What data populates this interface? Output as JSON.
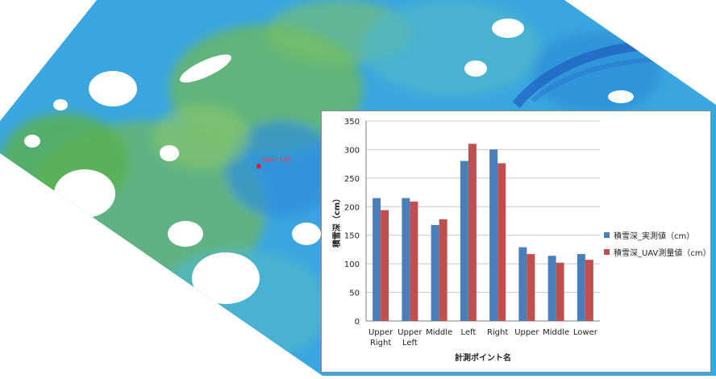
{
  "map": {
    "point_label": "Upper Left",
    "colors": {
      "blue": "#2f9fe6",
      "green": "#6fb85a",
      "teal": "#4fb8c9",
      "navy": "#1e4fb0",
      "snow": "#ffffff",
      "marker": "#d0263a"
    }
  },
  "chart_data": {
    "type": "bar",
    "categories": [
      "Upper Right",
      "Upper Left",
      "Middle",
      "Left",
      "Right",
      "Upper",
      "Middle",
      "Lower"
    ],
    "category_lines": [
      [
        "Upper",
        "Right"
      ],
      [
        "Upper",
        "Left"
      ],
      [
        "Middle"
      ],
      [
        "Left"
      ],
      [
        "Right"
      ],
      [
        "Upper"
      ],
      [
        "Middle"
      ],
      [
        "Lower"
      ]
    ],
    "series": [
      {
        "name": "積雪深_実測値（cm）",
        "color": "#4a7ebb",
        "values": [
          215,
          215,
          168,
          280,
          300,
          129,
          114,
          117
        ]
      },
      {
        "name": "積雪深_UAV測量値（cm）",
        "color": "#c0504d",
        "values": [
          194,
          209,
          178,
          310,
          276,
          117,
          102,
          107
        ]
      }
    ],
    "xlabel": "計測ポイント名",
    "ylabel": "積雪深（cm）",
    "ylim": [
      0,
      350
    ],
    "yticks": [
      0,
      50,
      100,
      150,
      200,
      250,
      300,
      350
    ],
    "grid": true,
    "legend_position": "right"
  }
}
